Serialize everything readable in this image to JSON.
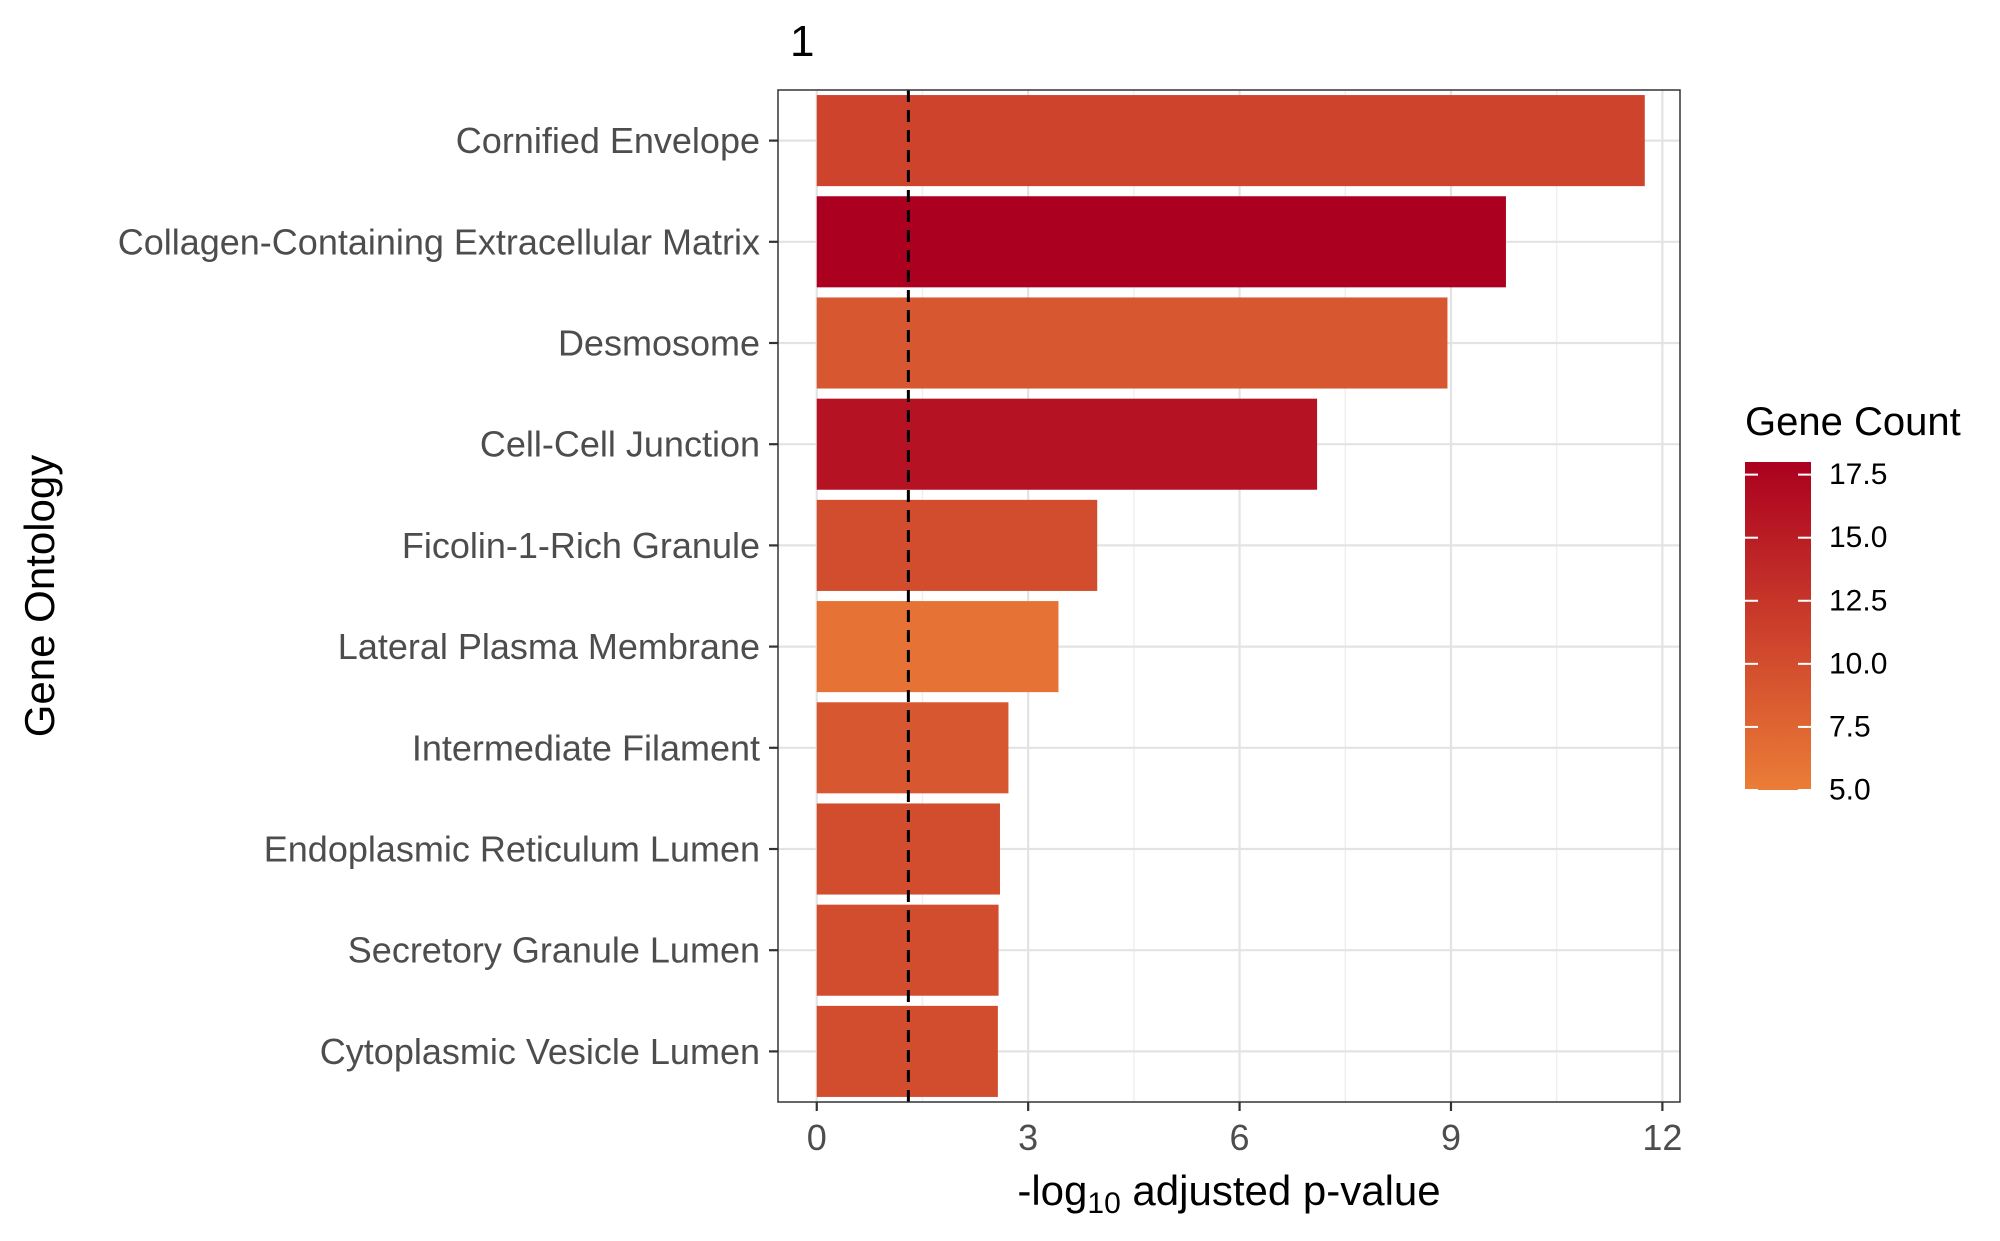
{
  "panel_label": "1",
  "chart_data": {
    "type": "bar",
    "orientation": "horizontal",
    "categories": [
      "Cornified Envelope",
      "Collagen-Containing Extracellular Matrix",
      "Desmosome",
      "Cell-Cell Junction",
      "Ficolin-1-Rich Granule",
      "Lateral Plasma Membrane",
      "Intermediate Filament",
      "Endoplasmic Reticulum Lumen",
      "Secretory Granule Lumen",
      "Cytoplasmic Vesicle Lumen"
    ],
    "values": [
      11.75,
      9.78,
      8.95,
      7.1,
      3.98,
      3.43,
      2.72,
      2.6,
      2.58,
      2.57
    ],
    "gene_counts": [
      11,
      18,
      9,
      16,
      10,
      6,
      9,
      10,
      10,
      10
    ],
    "xlabel_prefix": "-log",
    "xlabel_subscript": "10",
    "xlabel_suffix": " adjusted p-value",
    "ylabel": "Gene Ontology",
    "xlim": [
      -0.55,
      12.25
    ],
    "xticks": [
      0,
      3,
      6,
      9,
      12
    ],
    "xtick_labels": [
      "0",
      "3",
      "6",
      "9",
      "12"
    ],
    "threshold_line": 1.3,
    "threshold_style": "dashed",
    "grid": true,
    "legend": {
      "title": "Gene Count",
      "placement": "right",
      "range": [
        5,
        18
      ],
      "ticks": [
        17.5,
        15.0,
        12.5,
        10.0,
        7.5,
        5.0
      ],
      "tick_labels": [
        "17.5",
        "15.0",
        "12.5",
        "10.0",
        "7.5",
        "5.0"
      ],
      "low_color": "#EB7D37",
      "high_color": "#AB001F"
    }
  }
}
